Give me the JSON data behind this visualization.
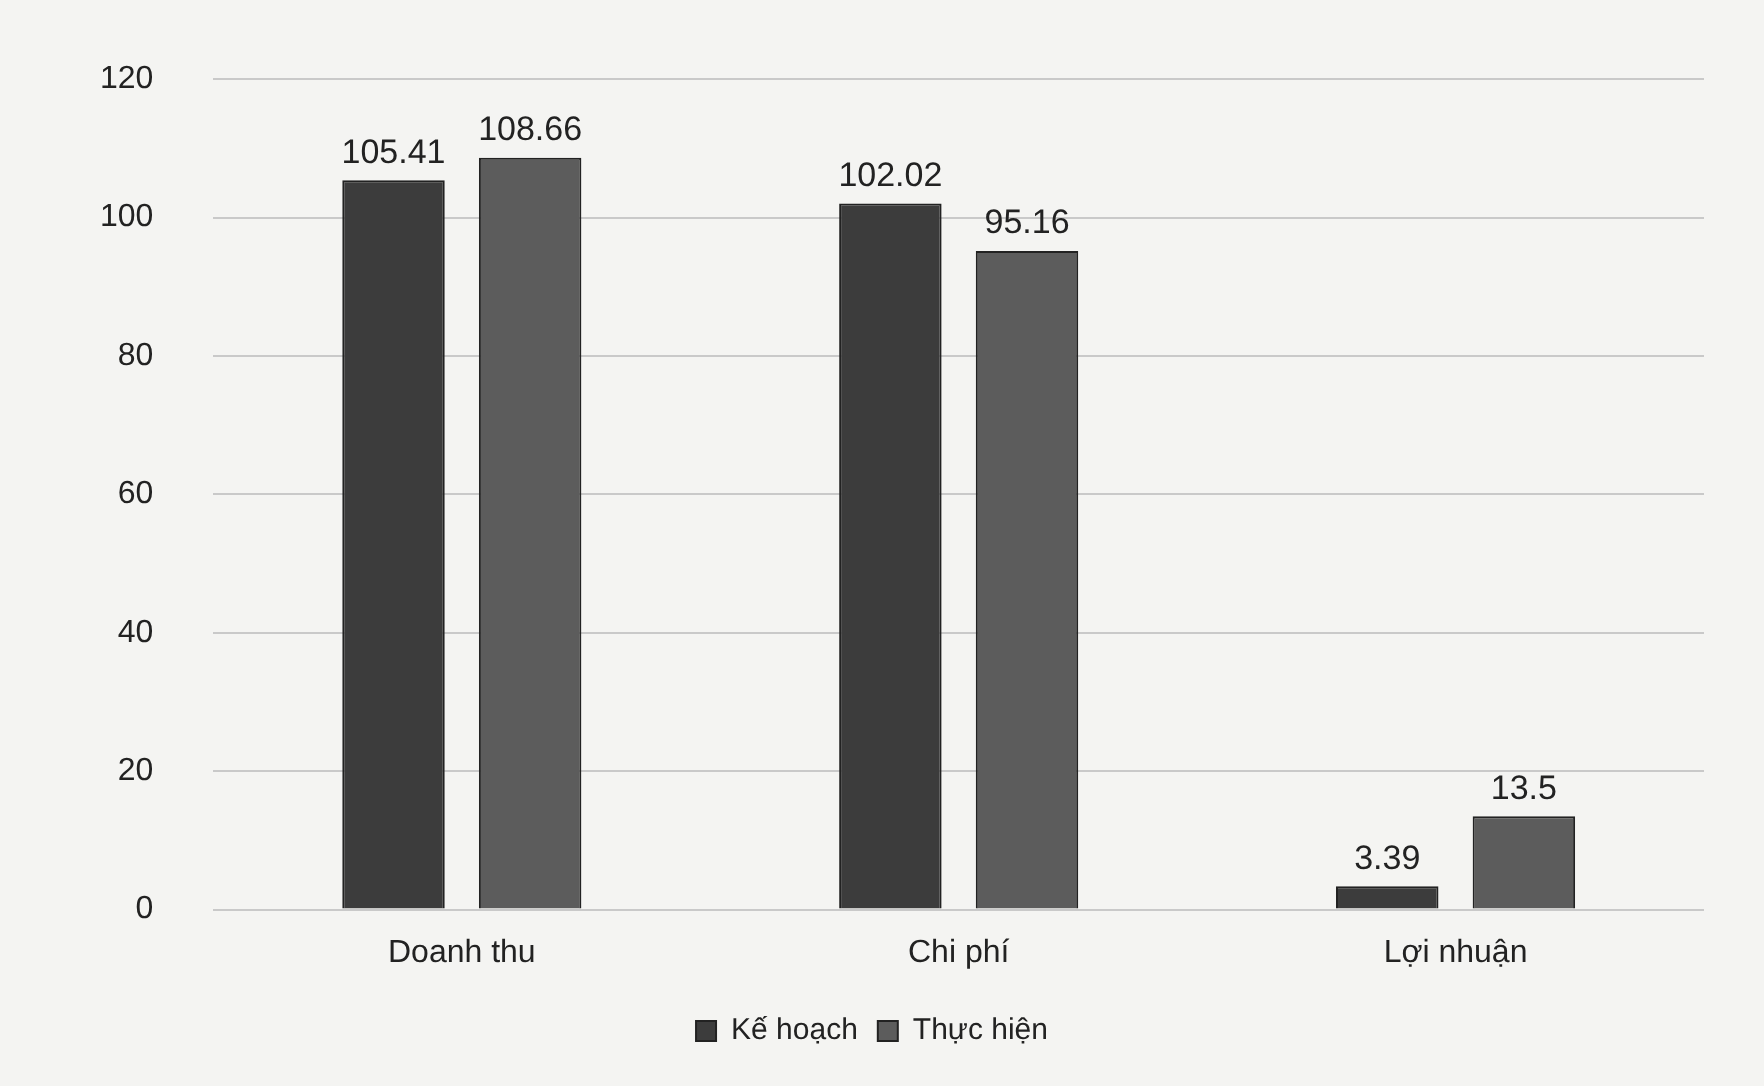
{
  "chart_data": {
    "type": "bar",
    "categories": [
      "Doanh thu",
      "Chi phí",
      "Lợi nhuận"
    ],
    "series": [
      {
        "name": "Kế hoạch",
        "color": "#3c3c3c",
        "values": [
          105.41,
          102.02,
          3.39
        ]
      },
      {
        "name": "Thực hiện",
        "color": "#5c5c5c",
        "values": [
          108.66,
          95.16,
          13.5
        ]
      }
    ],
    "ylim": [
      0,
      120
    ],
    "yticks": [
      0,
      20,
      40,
      60,
      80,
      100,
      120
    ],
    "grid": "y",
    "legend": "bottom",
    "data_labels": true
  }
}
